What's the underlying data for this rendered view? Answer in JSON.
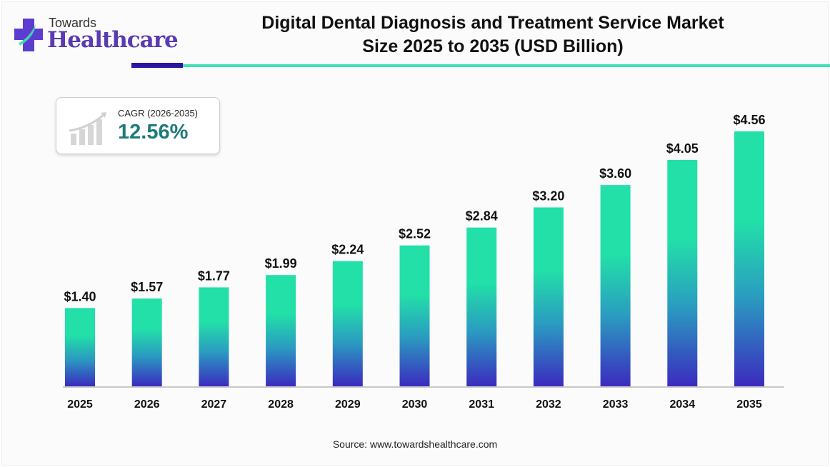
{
  "brand": {
    "line1": "Towards",
    "line2": "Healthcare"
  },
  "title_line1": "Digital Dental Diagnosis and Treatment Service Market",
  "title_line2": "Size 2025 to 2035 (USD Billion)",
  "cagr": {
    "label": "CAGR (2026-2035)",
    "value": "12.56%",
    "icon": "growth-chart-icon"
  },
  "source": "Source: www.towardshealthcare.com",
  "colors": {
    "bar_top": "#22e0a8",
    "bar_mid": "#2a9cc0",
    "bar_bottom": "#3b2bbf",
    "accent_dark": "#2a16a0",
    "accent_teal": "#3fe0b4"
  },
  "chart_data": {
    "type": "bar",
    "title": "Digital Dental Diagnosis and Treatment Service Market Size 2025 to 2035 (USD Billion)",
    "xlabel": "",
    "ylabel": "USD Billion",
    "categories": [
      "2025",
      "2026",
      "2027",
      "2028",
      "2029",
      "2030",
      "2031",
      "2032",
      "2033",
      "2034",
      "2035"
    ],
    "values": [
      1.4,
      1.57,
      1.77,
      1.99,
      2.24,
      2.52,
      2.84,
      3.2,
      3.6,
      4.05,
      4.56
    ],
    "labels": [
      "$1.40",
      "$1.57",
      "$1.77",
      "$1.99",
      "$2.24",
      "$2.52",
      "$2.84",
      "$3.20",
      "$3.60",
      "$4.05",
      "$4.56"
    ],
    "ylim": [
      0,
      4.56
    ],
    "grid": false,
    "legend": "none"
  }
}
